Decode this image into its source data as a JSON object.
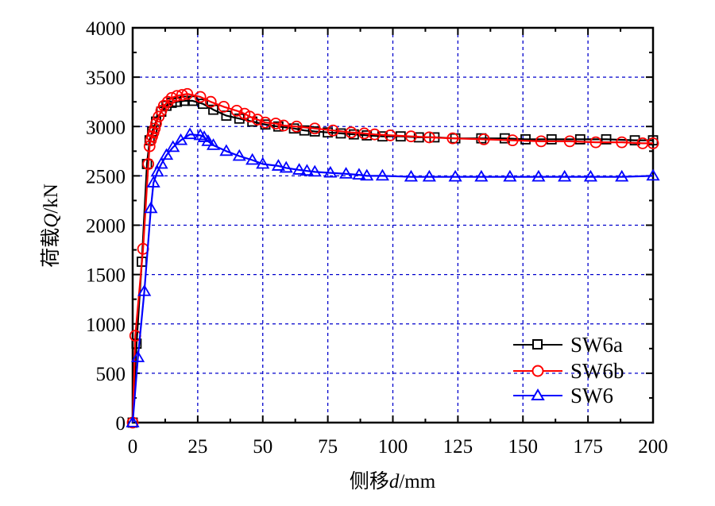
{
  "chart_data": {
    "type": "line",
    "title": "",
    "xlabel_parts": [
      "侧移",
      "d",
      "/mm"
    ],
    "ylabel_parts": [
      "荷载",
      "Q",
      "/kN"
    ],
    "xlim": [
      0,
      200
    ],
    "ylim": [
      0,
      4000
    ],
    "grid": true,
    "legend_position": "bottom-right",
    "x_ticks": [
      "0",
      "25",
      "50",
      "75",
      "100",
      "125",
      "150",
      "175",
      "200"
    ],
    "y_ticks": [
      "0",
      "500",
      "1000",
      "1500",
      "2000",
      "2500",
      "3000",
      "3500",
      "4000"
    ],
    "series": [
      {
        "name": "SW6a",
        "color": "#000000",
        "marker": "square",
        "x": [
          0,
          1.5,
          3.5,
          5.5,
          6.5,
          7.5,
          9,
          11,
          13,
          15,
          17,
          20,
          23,
          27,
          31,
          36,
          41,
          46,
          51,
          56,
          62,
          66,
          70,
          75,
          80,
          85,
          90,
          96,
          103,
          110,
          116,
          124,
          134,
          143,
          151,
          161,
          172,
          182,
          193,
          200
        ],
        "y": [
          0,
          800,
          1630,
          2620,
          2860,
          2950,
          3050,
          3150,
          3210,
          3240,
          3250,
          3260,
          3260,
          3230,
          3170,
          3110,
          3080,
          3050,
          3020,
          3000,
          2980,
          2960,
          2950,
          2940,
          2930,
          2920,
          2910,
          2900,
          2900,
          2890,
          2890,
          2880,
          2880,
          2880,
          2870,
          2870,
          2870,
          2870,
          2860,
          2860
        ]
      },
      {
        "name": "SW6b",
        "color": "#ff0000",
        "marker": "circle",
        "x": [
          0,
          1,
          4,
          6,
          6.5,
          7,
          7.5,
          8,
          8.5,
          9,
          10,
          11,
          12,
          13.5,
          15,
          17,
          19,
          21,
          26,
          30,
          35,
          40,
          43,
          45,
          48,
          51,
          55,
          58,
          63,
          70,
          77,
          84,
          89,
          93,
          99,
          107,
          114,
          123,
          135,
          146,
          157,
          168,
          178,
          188,
          196,
          200
        ],
        "y": [
          0,
          880,
          1760,
          2620,
          2800,
          2860,
          2900,
          2940,
          2980,
          3030,
          3100,
          3160,
          3210,
          3250,
          3290,
          3310,
          3320,
          3330,
          3300,
          3250,
          3200,
          3160,
          3130,
          3100,
          3070,
          3040,
          3030,
          3010,
          3000,
          2980,
          2960,
          2940,
          2930,
          2920,
          2910,
          2900,
          2890,
          2880,
          2870,
          2860,
          2850,
          2850,
          2840,
          2840,
          2830,
          2830
        ]
      },
      {
        "name": "SW6",
        "color": "#0000ff",
        "marker": "triangle",
        "x": [
          0,
          2,
          4.5,
          7,
          8,
          9.5,
          11,
          13,
          15.5,
          18.5,
          22,
          26,
          27.5,
          29,
          31,
          36,
          41,
          46,
          50,
          56,
          59,
          64,
          67,
          70,
          76,
          82,
          87,
          90,
          96,
          107,
          114,
          124,
          134,
          145,
          156,
          166,
          176,
          188,
          200
        ],
        "y": [
          0,
          660,
          1330,
          2170,
          2430,
          2540,
          2620,
          2710,
          2790,
          2860,
          2920,
          2910,
          2890,
          2850,
          2810,
          2750,
          2700,
          2660,
          2620,
          2600,
          2580,
          2560,
          2550,
          2540,
          2530,
          2520,
          2510,
          2500,
          2500,
          2490,
          2490,
          2490,
          2490,
          2490,
          2490,
          2490,
          2490,
          2490,
          2500
        ]
      }
    ]
  }
}
